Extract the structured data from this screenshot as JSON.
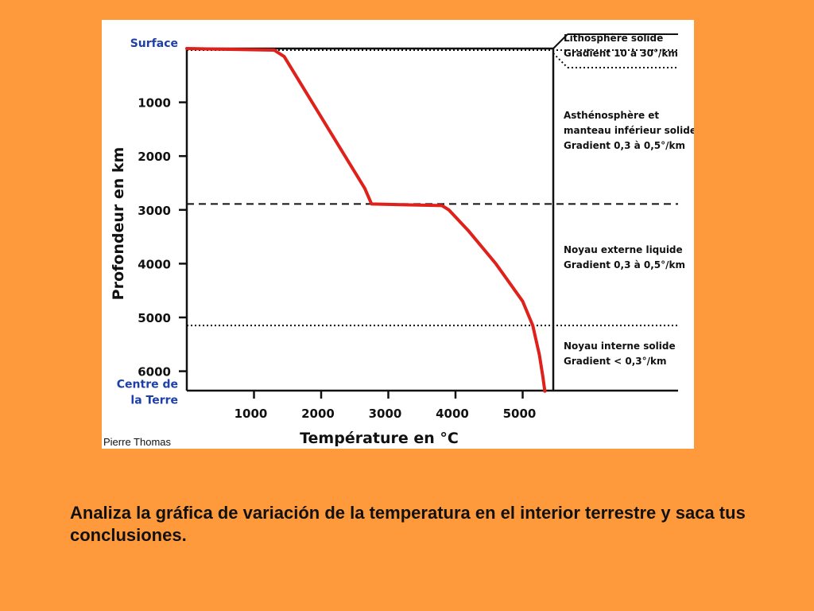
{
  "slide": {
    "caption": "Analiza la gráfica de variación de la temperatura en el interior terrestre y saca tus conclusiones."
  },
  "colors": {
    "background": "#FF9A3C",
    "curve": "#E0201B",
    "blue_label": "#1E3FA8",
    "axis": "#111111"
  },
  "chart_data": {
    "type": "line",
    "title": "",
    "xlabel": "Température en °C",
    "ylabel": "Profondeur en km",
    "xlim": [
      0,
      5500
    ],
    "ylim": [
      0,
      6371
    ],
    "y_inverted": true,
    "grid": false,
    "credit": "Pierre Thomas",
    "x_ticks": [
      1000,
      2000,
      3000,
      4000,
      5000
    ],
    "x_tick_labels": [
      "1000",
      "2000",
      "3000",
      "4000",
      "5000"
    ],
    "y_ticks": [
      1000,
      2000,
      3000,
      4000,
      5000,
      6000
    ],
    "y_tick_labels": [
      "1000",
      "2000",
      "3000",
      "4000",
      "5000",
      "6000"
    ],
    "y_special_labels": [
      {
        "depth": 0,
        "text": "Surface"
      },
      {
        "depth": 6371,
        "text": "Centre de la Terre"
      }
    ],
    "series": [
      {
        "name": "Température",
        "x": [
          0,
          1300,
          1450,
          2650,
          2750,
          3800,
          3900,
          4200,
          4600,
          5000,
          5150,
          5250,
          5300,
          5330
        ],
        "y": [
          0,
          30,
          150,
          2600,
          2890,
          2920,
          3000,
          3400,
          4000,
          4700,
          5150,
          5700,
          6100,
          6371
        ]
      }
    ],
    "boundaries": [
      {
        "depth": 30,
        "style": "dotted",
        "extends_into_legend": true
      },
      {
        "depth": 2890,
        "style": "dashed",
        "extends_into_legend": true
      },
      {
        "depth": 5150,
        "style": "dotted",
        "extends_into_legend": true
      }
    ],
    "layer_labels": [
      {
        "lines": [
          "Lithosphère solide",
          "Gradient 10 à 30°/km"
        ]
      },
      {
        "lines": [
          "Asthénosphère et",
          "manteau inférieur solides",
          "Gradient 0,3 à 0,5°/km"
        ]
      },
      {
        "lines": [
          "Noyau externe liquide",
          "Gradient 0,3 à 0,5°/km"
        ]
      },
      {
        "lines": [
          "Noyau interne solide",
          "Gradient < 0,3°/km"
        ]
      }
    ]
  }
}
